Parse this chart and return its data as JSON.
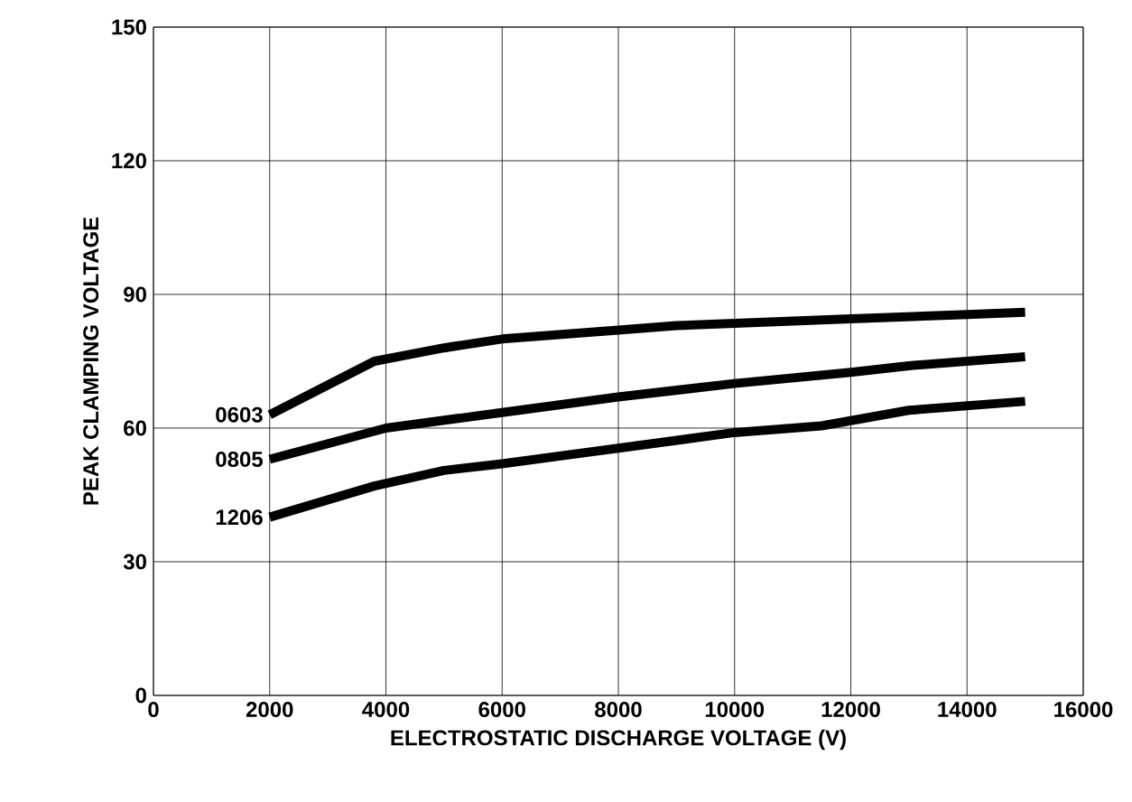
{
  "chart_data": {
    "type": "line",
    "xlabel": "ELECTROSTATIC DISCHARGE VOLTAGE (V)",
    "ylabel": "PEAK CLAMPING VOLTAGE",
    "xlim": [
      0,
      16000
    ],
    "ylim": [
      0,
      150
    ],
    "xticks": [
      0,
      2000,
      4000,
      6000,
      8000,
      10000,
      12000,
      14000,
      16000
    ],
    "yticks": [
      0,
      30,
      60,
      90,
      120,
      150
    ],
    "grid": true,
    "marker": "none",
    "line_style": "solid",
    "series": [
      {
        "name": "0603",
        "color": "#000000",
        "x": [
          2000,
          3800,
          5000,
          6000,
          8000,
          9000,
          10000,
          12000,
          14000,
          15000
        ],
        "values": [
          63,
          75,
          78,
          80,
          82,
          83,
          83.5,
          84.5,
          85.5,
          86
        ]
      },
      {
        "name": "0805",
        "color": "#000000",
        "x": [
          2000,
          4000,
          6000,
          8000,
          10000,
          12000,
          13000,
          15000
        ],
        "values": [
          53,
          60,
          63.5,
          67,
          70,
          72.5,
          74,
          76
        ]
      },
      {
        "name": "1206",
        "color": "#000000",
        "x": [
          2000,
          3800,
          5000,
          6000,
          8000,
          10000,
          11500,
          13000,
          15000
        ],
        "values": [
          40,
          47,
          50.5,
          52,
          55.5,
          59,
          60.5,
          64,
          66
        ]
      }
    ]
  }
}
